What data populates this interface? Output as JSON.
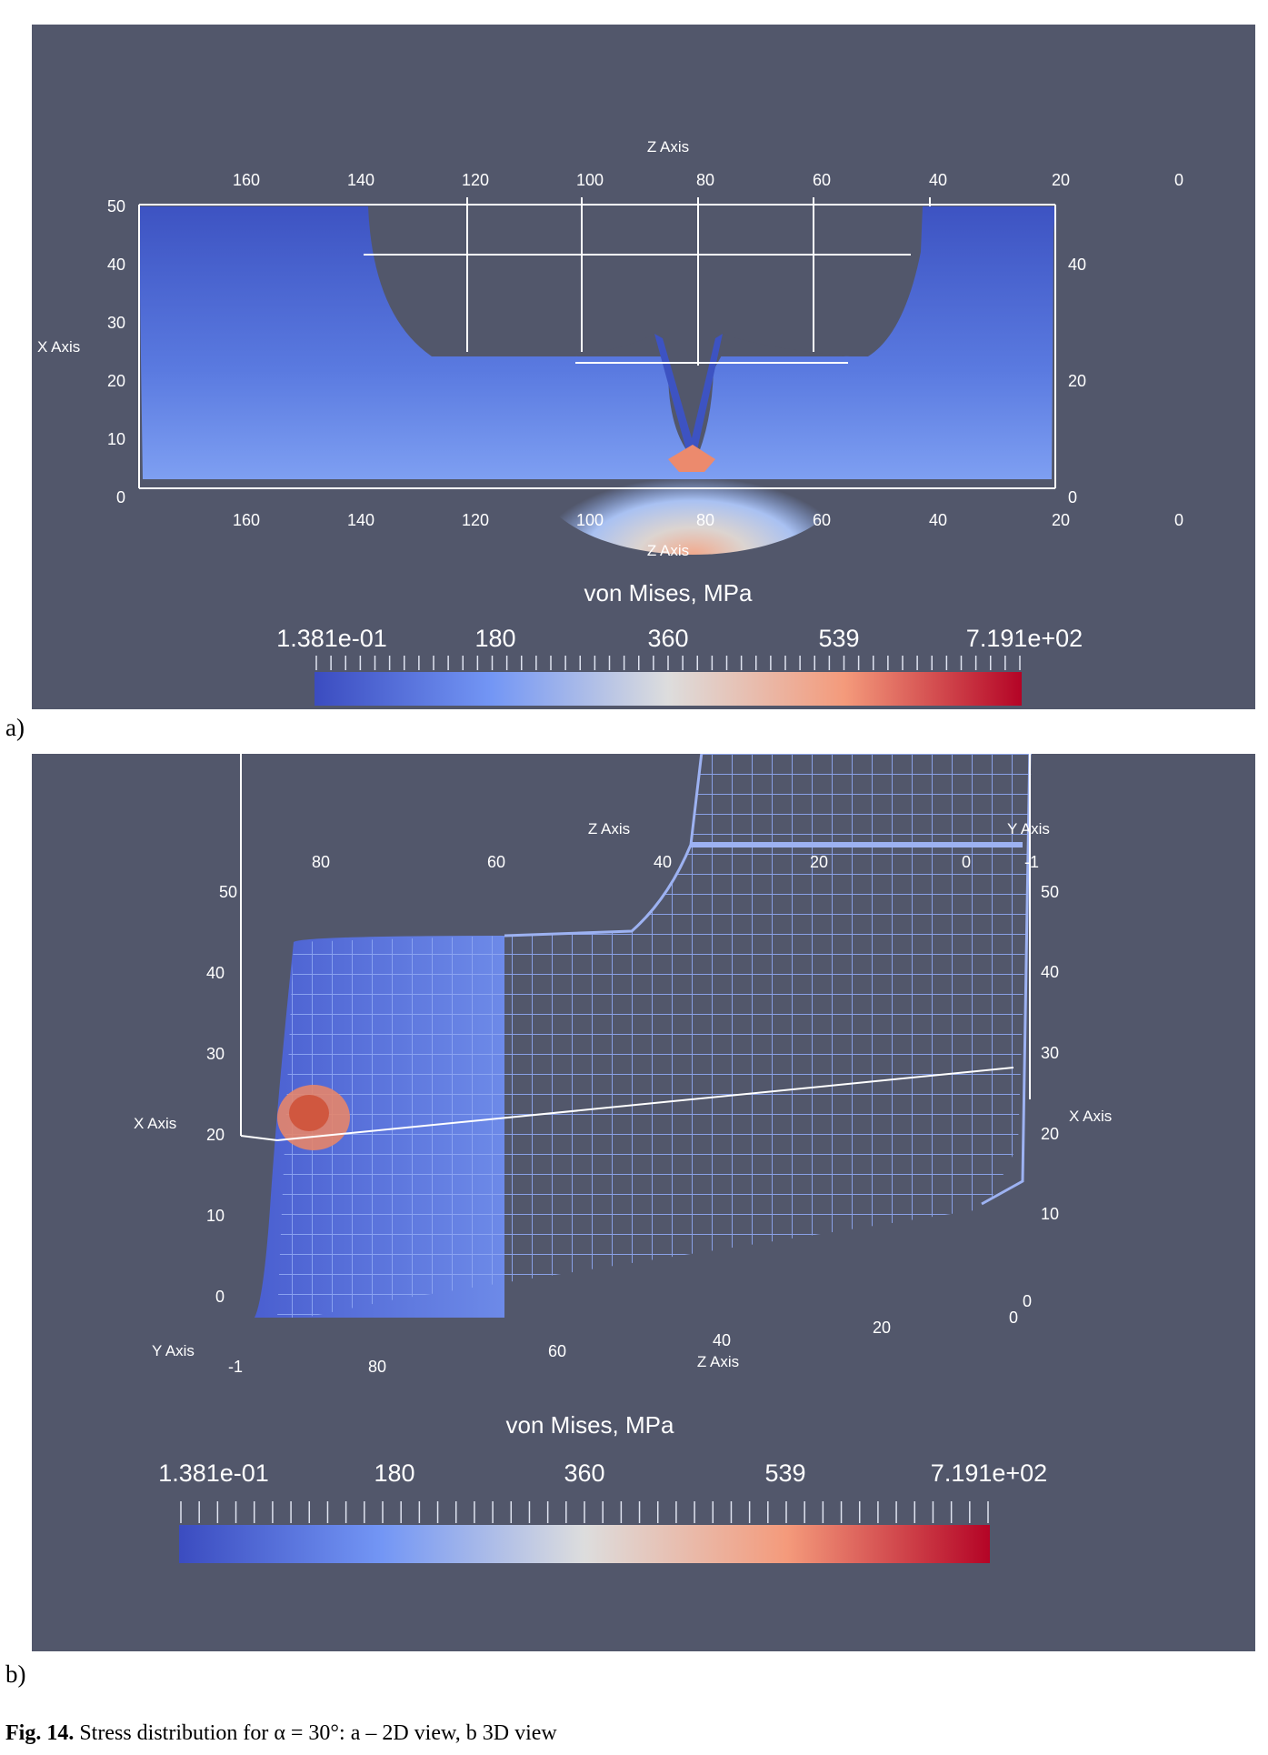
{
  "panels": {
    "a": {
      "label": "a)",
      "top_axis": {
        "title": "Z Axis",
        "ticks": [
          "160",
          "140",
          "120",
          "100",
          "80",
          "60",
          "40",
          "20",
          "0"
        ]
      },
      "bottom_axis": {
        "title": "Z Axis",
        "ticks": [
          "160",
          "140",
          "120",
          "100",
          "80",
          "60",
          "40",
          "20",
          "0"
        ]
      },
      "left_axis": {
        "title": "X Axis",
        "ticks": [
          "50",
          "40",
          "30",
          "20",
          "10",
          "0"
        ]
      },
      "right_axis": {
        "ticks": [
          "40",
          "20",
          "0"
        ]
      },
      "colorbar": {
        "title": "von Mises, MPa",
        "labels": [
          "1.381e-01",
          "180",
          "360",
          "539",
          "7.191e+02"
        ]
      }
    },
    "b": {
      "label": "b)",
      "top_z_axis": {
        "title": "Z Axis",
        "ticks": [
          "80",
          "60",
          "40",
          "20",
          "0"
        ]
      },
      "top_y_axis": {
        "title": "Y Axis",
        "ticks": [
          "-1"
        ]
      },
      "left_axis": {
        "title": "X Axis",
        "ticks": [
          "50",
          "40",
          "30",
          "20",
          "10",
          "0"
        ]
      },
      "right_axis": {
        "title": "X Axis",
        "ticks": [
          "50",
          "40",
          "30",
          "20",
          "10",
          "0"
        ]
      },
      "bottom_z_axis": {
        "title": "Z Axis",
        "ticks": [
          "80",
          "60",
          "40",
          "20",
          "0"
        ]
      },
      "bottom_y_axis": {
        "title": "Y Axis",
        "ticks": [
          "-1"
        ]
      },
      "colorbar": {
        "title": "von Mises, MPa",
        "labels": [
          "1.381e-01",
          "180",
          "360",
          "539",
          "7.191e+02"
        ]
      }
    }
  },
  "colors": {
    "background": "#52576b",
    "colormap_low": "#3b4cc0",
    "colormap_mid": "#dddddd",
    "colormap_high": "#b40426"
  },
  "caption": {
    "number": "Fig. 14.",
    "text": "Stress distribution for α = 30°: a – 2D view, b 3D view"
  }
}
